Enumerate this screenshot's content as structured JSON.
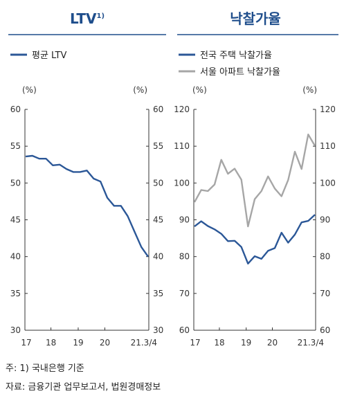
{
  "chart_data": [
    {
      "type": "line",
      "title": "LTV",
      "title_sup": "1)",
      "unit_left": "(%)",
      "unit_right": "(%)",
      "ylim": [
        30,
        60
      ],
      "yticks": [
        30,
        35,
        40,
        45,
        50,
        55,
        60
      ],
      "xticks": [
        "17",
        "18",
        "19",
        "20",
        "21.3/4"
      ],
      "series": [
        {
          "name": "평균 LTV",
          "color": "#2b5797",
          "values": [
            53.6,
            53.7,
            53.3,
            53.3,
            52.4,
            52.5,
            51.9,
            51.5,
            51.5,
            51.7,
            50.6,
            50.2,
            48.0,
            46.9,
            46.9,
            45.5,
            43.4,
            41.3,
            40.0
          ]
        }
      ]
    },
    {
      "type": "line",
      "title": "낙찰가율",
      "unit_left": "(%)",
      "unit_right": "(%)",
      "ylim": [
        60,
        120
      ],
      "yticks": [
        60,
        70,
        80,
        90,
        100,
        110,
        120
      ],
      "xticks": [
        "17",
        "18",
        "19",
        "20",
        "21.3/4"
      ],
      "series": [
        {
          "name": "전국 주택 낙찰가율",
          "color": "#2b5797",
          "values": [
            88.2,
            89.6,
            88.3,
            87.4,
            86.2,
            84.2,
            84.3,
            82.6,
            78.1,
            80.1,
            79.4,
            81.6,
            82.3,
            86.5,
            83.8,
            86.0,
            89.3,
            89.7,
            91.4
          ]
        },
        {
          "name": "서울 아파트 낙찰가율",
          "color": "#a6a6a6",
          "values": [
            94.8,
            98.1,
            97.8,
            99.6,
            106.3,
            102.5,
            103.9,
            100.9,
            88.2,
            95.6,
            97.8,
            101.8,
            98.5,
            96.4,
            100.8,
            108.5,
            103.8,
            113.2,
            110.1
          ]
        }
      ]
    }
  ],
  "notes": {
    "note1": "주: 1) 국내은행 기준",
    "source": "자료: 금융기관 업무보고서, 법원경매정보"
  }
}
